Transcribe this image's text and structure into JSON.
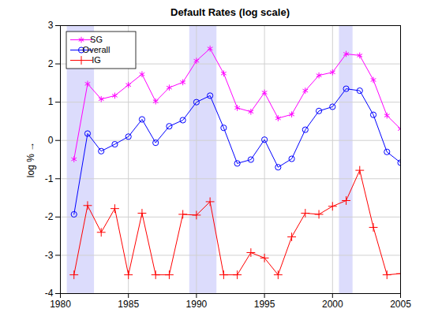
{
  "chart_data": {
    "type": "line",
    "title": "Default Rates (log scale)",
    "y_label": "log %",
    "x": [
      1981,
      1982,
      1983,
      1984,
      1985,
      1986,
      1987,
      1988,
      1989,
      1990,
      1991,
      1992,
      1993,
      1994,
      1995,
      1996,
      1997,
      1998,
      1999,
      2000,
      2001,
      2002,
      2003,
      2004,
      2005
    ],
    "series": [
      {
        "name": "SG",
        "color": "#ff00ff",
        "marker": "asterisk",
        "line_style": "solid",
        "values": [
          -0.49,
          1.48,
          1.08,
          1.17,
          1.45,
          1.73,
          1.02,
          1.38,
          1.52,
          2.08,
          2.4,
          1.75,
          0.85,
          0.75,
          1.25,
          0.58,
          0.68,
          1.3,
          1.7,
          1.78,
          2.26,
          2.22,
          1.58,
          0.65,
          0.3
        ]
      },
      {
        "name": "Overall",
        "color": "#0000ff",
        "marker": "circle",
        "line_style": "solid",
        "values": [
          -1.93,
          0.18,
          -0.28,
          -0.1,
          0.1,
          0.55,
          -0.06,
          0.37,
          0.53,
          1.0,
          1.17,
          0.33,
          -0.6,
          -0.5,
          0.02,
          -0.7,
          -0.48,
          0.28,
          0.77,
          0.88,
          1.35,
          1.3,
          0.67,
          -0.3,
          -0.58
        ]
      },
      {
        "name": "IG",
        "color": "#ff0000",
        "marker": "plus",
        "line_style": "solid",
        "values": [
          -3.51,
          -1.7,
          -2.4,
          -1.78,
          -3.51,
          -1.9,
          -3.51,
          -3.51,
          -1.93,
          -1.95,
          -1.6,
          -3.51,
          -3.51,
          -2.93,
          -3.07,
          -3.51,
          -2.52,
          -1.9,
          -1.93,
          -1.72,
          -1.57,
          -0.78,
          -2.27,
          -3.51,
          -3.48
        ]
      }
    ],
    "bands": [
      [
        1980.5,
        1982.5
      ],
      [
        1989.5,
        1991.5
      ],
      [
        2000.5,
        2001.5
      ]
    ],
    "xlim": [
      1980,
      2005
    ],
    "xticks": [
      1980,
      1985,
      1990,
      1995,
      2000,
      2005
    ],
    "ylim": [
      -4,
      3
    ],
    "yticks": [
      -4,
      -3,
      -2,
      -1,
      0,
      1,
      2,
      3
    ],
    "grid": true,
    "legend": "northwest"
  }
}
